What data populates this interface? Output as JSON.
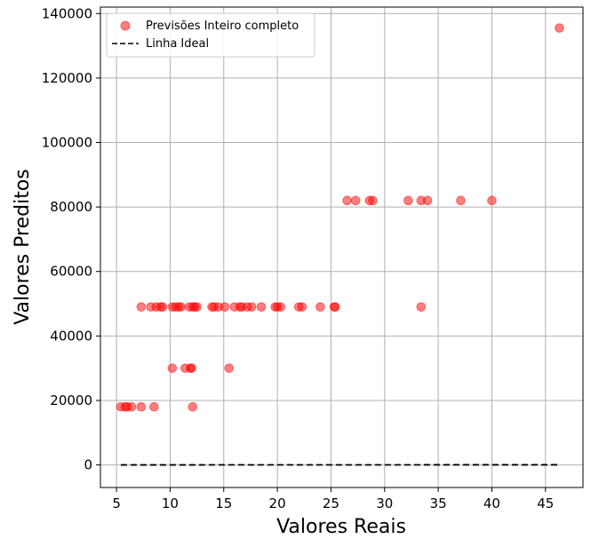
{
  "chart_data": {
    "type": "scatter",
    "xlabel": "Valores Reais",
    "ylabel": "Valores Preditos",
    "xlim": [
      3.5,
      48.5
    ],
    "ylim": [
      -7000,
      142000
    ],
    "x_ticks": [
      5,
      10,
      15,
      20,
      25,
      30,
      35,
      40,
      45
    ],
    "y_ticks": [
      0,
      20000,
      40000,
      60000,
      80000,
      100000,
      120000,
      140000
    ],
    "grid": true,
    "legend_position": "top-left",
    "series": [
      {
        "name": "Previsões Inteiro completo",
        "kind": "scatter",
        "color": "#ff0000",
        "points": [
          [
            5.4,
            18000
          ],
          [
            5.8,
            18000
          ],
          [
            6.0,
            18000
          ],
          [
            6.4,
            18000
          ],
          [
            7.3,
            18000
          ],
          [
            8.5,
            18000
          ],
          [
            12.1,
            18000
          ],
          [
            10.2,
            30000
          ],
          [
            11.4,
            30000
          ],
          [
            11.9,
            30000
          ],
          [
            12.0,
            30000
          ],
          [
            15.5,
            30000
          ],
          [
            7.3,
            49000
          ],
          [
            8.2,
            49000
          ],
          [
            8.7,
            49000
          ],
          [
            9.1,
            49000
          ],
          [
            9.3,
            49000
          ],
          [
            10.2,
            49000
          ],
          [
            10.5,
            49000
          ],
          [
            10.8,
            49000
          ],
          [
            11.0,
            49000
          ],
          [
            11.8,
            49000
          ],
          [
            12.1,
            49000
          ],
          [
            12.3,
            49000
          ],
          [
            12.5,
            49000
          ],
          [
            13.9,
            49000
          ],
          [
            14.1,
            49000
          ],
          [
            14.5,
            49000
          ],
          [
            15.1,
            49000
          ],
          [
            16.0,
            49000
          ],
          [
            16.5,
            49000
          ],
          [
            16.7,
            49000
          ],
          [
            17.2,
            49000
          ],
          [
            17.6,
            49000
          ],
          [
            18.5,
            49000
          ],
          [
            19.8,
            49000
          ],
          [
            20.0,
            49000
          ],
          [
            20.3,
            49000
          ],
          [
            22.0,
            49000
          ],
          [
            22.3,
            49000
          ],
          [
            24.0,
            49000
          ],
          [
            25.3,
            49000
          ],
          [
            25.4,
            49000
          ],
          [
            33.4,
            49000
          ],
          [
            26.5,
            82000
          ],
          [
            27.3,
            82000
          ],
          [
            28.6,
            82000
          ],
          [
            28.9,
            82000
          ],
          [
            32.2,
            82000
          ],
          [
            33.4,
            82000
          ],
          [
            34.0,
            82000
          ],
          [
            37.1,
            82000
          ],
          [
            40.0,
            82000
          ],
          [
            46.3,
            135500
          ]
        ]
      },
      {
        "name": "Linha Ideal",
        "kind": "line",
        "style": "dashed",
        "color": "#000000",
        "points": [
          [
            5.4,
            5.4
          ],
          [
            46.3,
            46.3
          ]
        ]
      }
    ]
  }
}
